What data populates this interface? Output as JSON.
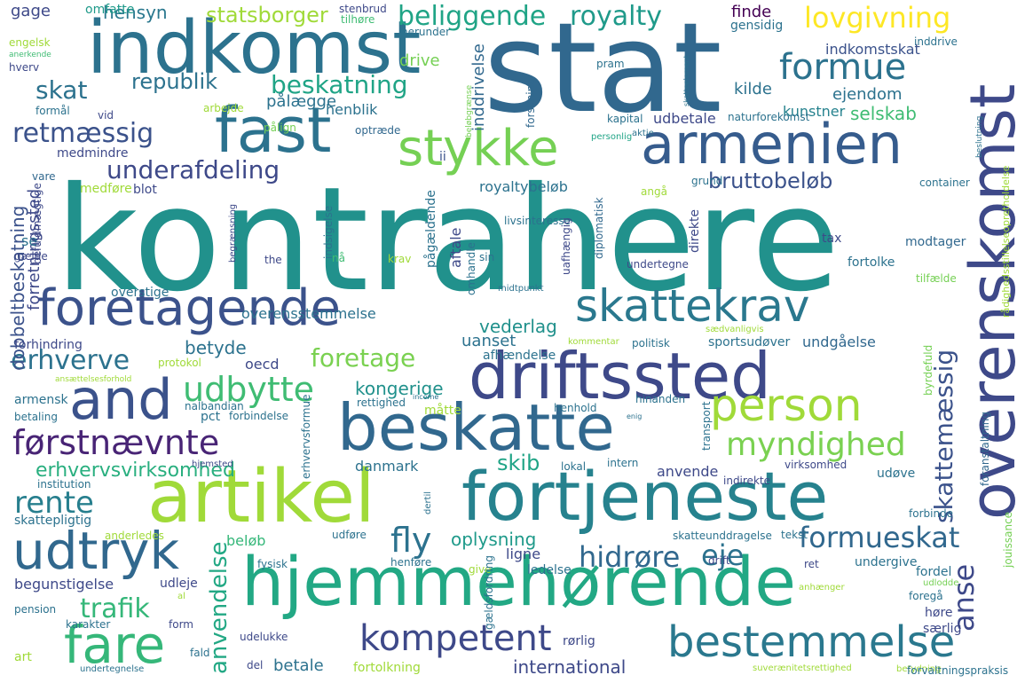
{
  "word_cloud": {
    "words": [
      {
        "text": "kontrahere",
        "color": "#21918c"
      },
      {
        "text": "stat",
        "color": "#31688e"
      },
      {
        "text": "indkomst",
        "color": "#2c728e"
      },
      {
        "text": "fast",
        "color": "#2c728e"
      },
      {
        "text": "armenien",
        "color": "#365c8d"
      },
      {
        "text": "stykke",
        "color": "#75d054"
      },
      {
        "text": "formue",
        "color": "#2c728e"
      },
      {
        "text": "lovgivning",
        "color": "#fde725"
      },
      {
        "text": "beliggende",
        "color": "#20a486"
      },
      {
        "text": "royalty",
        "color": "#1f9a8a"
      },
      {
        "text": "republik",
        "color": "#2c728e"
      },
      {
        "text": "beskatning",
        "color": "#20a486"
      },
      {
        "text": "skat",
        "color": "#2c728e"
      },
      {
        "text": "retmæssig",
        "color": "#3b528b"
      },
      {
        "text": "underafdeling",
        "color": "#3e4989"
      },
      {
        "text": "bruttobeløb",
        "color": "#3b528b"
      },
      {
        "text": "foretagende",
        "color": "#3b528b"
      },
      {
        "text": "skattekrav",
        "color": "#2a788e"
      },
      {
        "text": "overenskomst",
        "color": "#3e4989"
      },
      {
        "text": "driftssted",
        "color": "#3e4989"
      },
      {
        "text": "and",
        "color": "#3b528b"
      },
      {
        "text": "beskatte",
        "color": "#31688e"
      },
      {
        "text": "person",
        "color": "#a0da39"
      },
      {
        "text": "myndighed",
        "color": "#7ad151"
      },
      {
        "text": "førstnævnte",
        "color": "#482475"
      },
      {
        "text": "udbytte",
        "color": "#3fbc73"
      },
      {
        "text": "artikel",
        "color": "#a0da39"
      },
      {
        "text": "fortjeneste",
        "color": "#26828e"
      },
      {
        "text": "erhverve",
        "color": "#2c728e"
      },
      {
        "text": "udtryk",
        "color": "#31688e"
      },
      {
        "text": "rente",
        "color": "#277f8e"
      },
      {
        "text": "hjemmehørende",
        "color": "#22a884"
      },
      {
        "text": "fare",
        "color": "#35b779"
      },
      {
        "text": "kompetent",
        "color": "#3e4989"
      },
      {
        "text": "bestemmelse",
        "color": "#2a788e"
      },
      {
        "text": "trafik",
        "color": "#35b779"
      },
      {
        "text": "fly",
        "color": "#2c728e"
      },
      {
        "text": "formueskat",
        "color": "#31688e"
      },
      {
        "text": "hidrøre",
        "color": "#31688e"
      },
      {
        "text": "eje",
        "color": "#2c728e"
      },
      {
        "text": "anse",
        "color": "#3e4989"
      },
      {
        "text": "skattemæssig",
        "color": "#3b528b"
      },
      {
        "text": "anvendelse",
        "color": "#22a884"
      },
      {
        "text": "oplysning",
        "color": "#1f9a8a"
      },
      {
        "text": "foretage",
        "color": "#7ad151"
      },
      {
        "text": "skib",
        "color": "#20a486"
      },
      {
        "text": "kongerige",
        "color": "#21918c"
      },
      {
        "text": "vederlag",
        "color": "#21918c"
      },
      {
        "text": "betyde",
        "color": "#2c728e"
      },
      {
        "text": "erhvervsvirksomhed",
        "color": "#29af7f"
      },
      {
        "text": "dobbeltbeskatning",
        "color": "#3b528b"
      },
      {
        "text": "forretningssted",
        "color": "#3e4989"
      },
      {
        "text": "statsborger",
        "color": "#a0da39"
      },
      {
        "text": "hensyn",
        "color": "#2a788e"
      },
      {
        "text": "gage",
        "color": "#3e4989"
      },
      {
        "text": "omfatte",
        "color": "#1f9a8a"
      },
      {
        "text": "stenbrud",
        "color": "#3e4989"
      },
      {
        "text": "tilhøre",
        "color": "#3fbc73"
      },
      {
        "text": "herunder",
        "color": "#2c728e"
      },
      {
        "text": "finde",
        "color": "#440154"
      },
      {
        "text": "gensidig",
        "color": "#2c728e"
      },
      {
        "text": "indkomstskat",
        "color": "#3b528b"
      },
      {
        "text": "inddrive",
        "color": "#2c728e"
      },
      {
        "text": "drive",
        "color": "#75d054"
      },
      {
        "text": "pram",
        "color": "#2c728e"
      },
      {
        "text": "kilde",
        "color": "#2c728e"
      },
      {
        "text": "ejendom",
        "color": "#2c728e"
      },
      {
        "text": "kunstner",
        "color": "#26828e"
      },
      {
        "text": "selskab",
        "color": "#3fbc73"
      },
      {
        "text": "henblik",
        "color": "#2c728e"
      },
      {
        "text": "pålægge",
        "color": "#2c728e"
      },
      {
        "text": "pålign",
        "color": "#75d054"
      },
      {
        "text": "arbejde",
        "color": "#a0da39"
      },
      {
        "text": "vid",
        "color": "#3e4989"
      },
      {
        "text": "formål",
        "color": "#2c728e"
      },
      {
        "text": "hverv",
        "color": "#3e4989"
      },
      {
        "text": "engelsk",
        "color": "#a0da39"
      },
      {
        "text": "anerkende",
        "color": "#3fbc73"
      },
      {
        "text": "inddrivelse",
        "color": "#31688e"
      },
      {
        "text": "forskning",
        "color": "#31688e"
      },
      {
        "text": "kapital",
        "color": "#2c728e"
      },
      {
        "text": "udbetale",
        "color": "#3e4989"
      },
      {
        "text": "naturforekomst",
        "color": "#2c728e"
      },
      {
        "text": "skatteelement",
        "color": "#2c728e"
      },
      {
        "text": "rådighedsstillelseopretholdelse",
        "color": "#a0da39"
      },
      {
        "text": "optræde",
        "color": "#31688e"
      },
      {
        "text": "personlig",
        "color": "#20a486"
      },
      {
        "text": "aktie",
        "color": "#2c728e"
      },
      {
        "text": "beløbgrænse",
        "color": "#75d054"
      },
      {
        "text": "beslutning",
        "color": "#2c728e"
      },
      {
        "text": "medmindre",
        "color": "#3e4989"
      },
      {
        "text": "ii",
        "color": "#3b528b"
      },
      {
        "text": "medføre",
        "color": "#a0da39"
      },
      {
        "text": "blot",
        "color": "#3e4989"
      },
      {
        "text": "vare",
        "color": "#31688e"
      },
      {
        "text": "royaltybeløb",
        "color": "#2c728e"
      },
      {
        "text": "angå",
        "color": "#a0da39"
      },
      {
        "text": "grund",
        "color": "#2c728e"
      },
      {
        "text": "container",
        "color": "#2c728e"
      },
      {
        "text": "befuldmægtige",
        "color": "#3e4989"
      },
      {
        "text": "se",
        "color": "#2c728e"
      },
      {
        "text": "begrænsning",
        "color": "#3e4989"
      },
      {
        "text": "gælde",
        "color": "#3e4989"
      },
      {
        "text": "the",
        "color": "#3e4989"
      },
      {
        "text": "nå",
        "color": "#3fbc73"
      },
      {
        "text": "krav",
        "color": "#a0da39"
      },
      {
        "text": "indsigelse",
        "color": "#2c728e"
      },
      {
        "text": "pågældende",
        "color": "#2c728e"
      },
      {
        "text": "aftale",
        "color": "#3e4989"
      },
      {
        "text": "sin",
        "color": "#2c728e"
      },
      {
        "text": "livsinteresse",
        "color": "#2c728e"
      },
      {
        "text": "uafhængig",
        "color": "#3e4989"
      },
      {
        "text": "diplomatisk",
        "color": "#31688e"
      },
      {
        "text": "undertegne",
        "color": "#3e4989"
      },
      {
        "text": "direkte",
        "color": "#3e4989"
      },
      {
        "text": "tax",
        "color": "#3e4989"
      },
      {
        "text": "fortolke",
        "color": "#2c728e"
      },
      {
        "text": "modtager",
        "color": "#31688e"
      },
      {
        "text": "midtpunkt",
        "color": "#2c728e"
      },
      {
        "text": "omhandle",
        "color": "#2c728e"
      },
      {
        "text": "tilfælde",
        "color": "#75d054"
      },
      {
        "text": "overstige",
        "color": "#2c728e"
      },
      {
        "text": "overensstemmelse",
        "color": "#2c728e"
      },
      {
        "text": "uanset",
        "color": "#2c728e"
      },
      {
        "text": "afhændelse",
        "color": "#2c728e"
      },
      {
        "text": "forhindring",
        "color": "#3e4989"
      },
      {
        "text": "protokol",
        "color": "#a0da39"
      },
      {
        "text": "oecd",
        "color": "#3e4989"
      },
      {
        "text": "kommentar",
        "color": "#a0da39"
      },
      {
        "text": "politisk",
        "color": "#2c728e"
      },
      {
        "text": "sædvanligvis",
        "color": "#a0da39"
      },
      {
        "text": "sportsudøver",
        "color": "#2c728e"
      },
      {
        "text": "undgåelse",
        "color": "#31688e"
      },
      {
        "text": "byrdefuld",
        "color": "#75d054"
      },
      {
        "text": "ansættelsesforhold",
        "color": "#a0da39"
      },
      {
        "text": "armensk",
        "color": "#2c728e"
      },
      {
        "text": "betaling",
        "color": "#2c728e"
      },
      {
        "text": "nalbandian",
        "color": "#2c728e"
      },
      {
        "text": "pct",
        "color": "#2c728e"
      },
      {
        "text": "forbindelse",
        "color": "#2c728e"
      },
      {
        "text": "rettighed",
        "color": "#2c728e"
      },
      {
        "text": "måtte",
        "color": "#a0da39"
      },
      {
        "text": "income",
        "color": "#2c728e"
      },
      {
        "text": "henhold",
        "color": "#2c728e"
      },
      {
        "text": "hinanden",
        "color": "#2c728e"
      },
      {
        "text": "transport",
        "color": "#2c728e"
      },
      {
        "text": "enig",
        "color": "#2c728e"
      },
      {
        "text": "foranstaltning",
        "color": "#31688e"
      },
      {
        "text": "hjemsted",
        "color": "#3e4989"
      },
      {
        "text": "erhvervsformue",
        "color": "#2c728e"
      },
      {
        "text": "danmark",
        "color": "#2c728e"
      },
      {
        "text": "lokal",
        "color": "#2c728e"
      },
      {
        "text": "intern",
        "color": "#2c728e"
      },
      {
        "text": "anvende",
        "color": "#3e4989"
      },
      {
        "text": "virksomhed",
        "color": "#3e4989"
      },
      {
        "text": "indirekte",
        "color": "#3e4989"
      },
      {
        "text": "udøve",
        "color": "#2c728e"
      },
      {
        "text": "institution",
        "color": "#2c728e"
      },
      {
        "text": "skattepligtig",
        "color": "#2c728e"
      },
      {
        "text": "anderledes",
        "color": "#a0da39"
      },
      {
        "text": "beløb",
        "color": "#35b779"
      },
      {
        "text": "udføre",
        "color": "#2c728e"
      },
      {
        "text": "skatteunddragelse",
        "color": "#2c728e"
      },
      {
        "text": "tekst",
        "color": "#2c728e"
      },
      {
        "text": "forbinde",
        "color": "#2c728e"
      },
      {
        "text": "jouissance",
        "color": "#75d054"
      },
      {
        "text": "dertil",
        "color": "#2c728e"
      },
      {
        "text": "fysisk",
        "color": "#2c728e"
      },
      {
        "text": "henføre",
        "color": "#2c728e"
      },
      {
        "text": "ligne",
        "color": "#3e4989"
      },
      {
        "text": "ledelse",
        "color": "#2c728e"
      },
      {
        "text": "drift",
        "color": "#3e4989"
      },
      {
        "text": "ret",
        "color": "#3e4989"
      },
      {
        "text": "undergive",
        "color": "#2c728e"
      },
      {
        "text": "anhænger",
        "color": "#a0da39"
      },
      {
        "text": "fordel",
        "color": "#2c728e"
      },
      {
        "text": "udlodde",
        "color": "#75d054"
      },
      {
        "text": "begunstigelse",
        "color": "#3e4989"
      },
      {
        "text": "udleje",
        "color": "#3e4989"
      },
      {
        "text": "al",
        "color": "#a0da39"
      },
      {
        "text": "give",
        "color": "#a0da39"
      },
      {
        "text": "pension",
        "color": "#2c728e"
      },
      {
        "text": "karakter",
        "color": "#2c728e"
      },
      {
        "text": "form",
        "color": "#3e4989"
      },
      {
        "text": "gældsfordring",
        "color": "#2c728e"
      },
      {
        "text": "udelukke",
        "color": "#3e4989"
      },
      {
        "text": "rørlig",
        "color": "#3e4989"
      },
      {
        "text": "foregå",
        "color": "#2c728e"
      },
      {
        "text": "høre",
        "color": "#3e4989"
      },
      {
        "text": "særlig",
        "color": "#3e4989"
      },
      {
        "text": "art",
        "color": "#a0da39"
      },
      {
        "text": "fald",
        "color": "#2c728e"
      },
      {
        "text": "undertegnelse",
        "color": "#2c728e"
      },
      {
        "text": "del",
        "color": "#3e4989"
      },
      {
        "text": "betale",
        "color": "#2c728e"
      },
      {
        "text": "fortolkning",
        "color": "#a0da39"
      },
      {
        "text": "international",
        "color": "#3e4989"
      },
      {
        "text": "suverænitetsrettighed",
        "color": "#a0da39"
      },
      {
        "text": "betydning",
        "color": "#a0da39"
      },
      {
        "text": "forvaltningspraksis",
        "color": "#2c728e"
      }
    ]
  }
}
